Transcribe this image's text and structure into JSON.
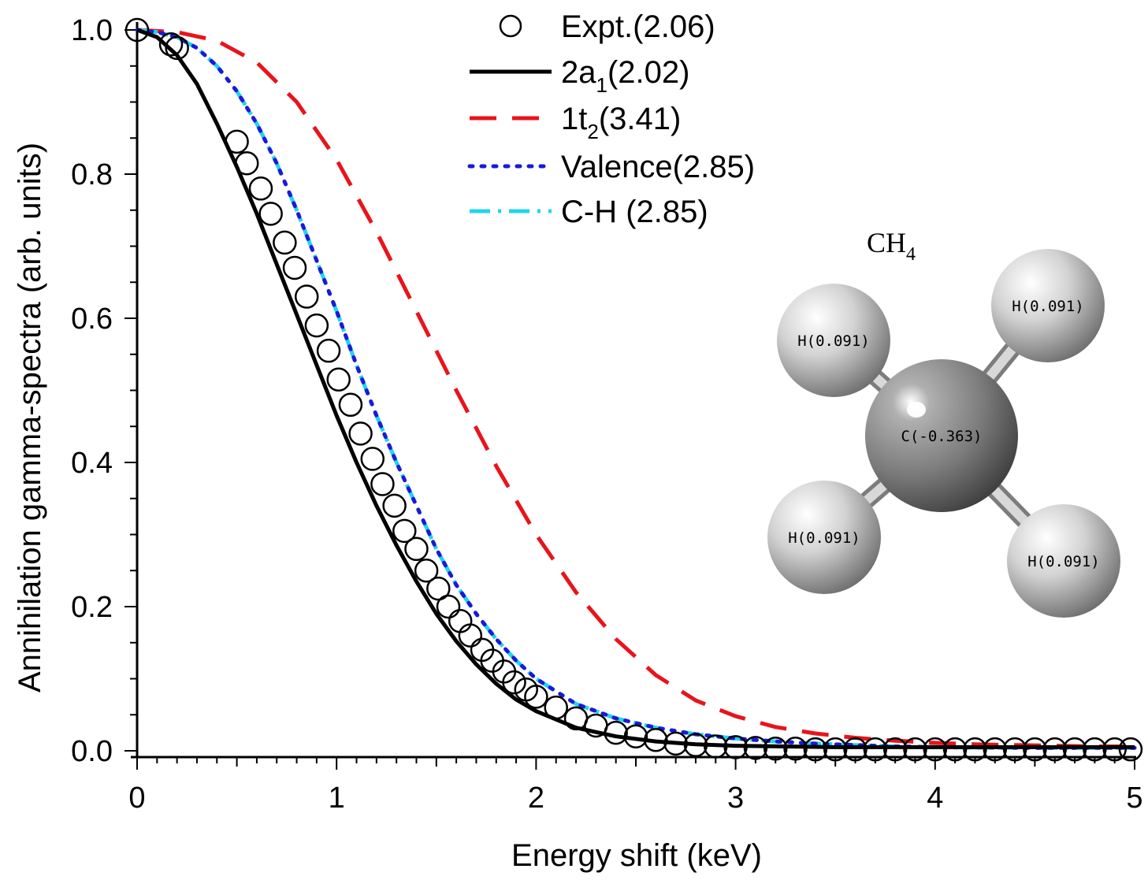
{
  "chart_data": {
    "type": "line",
    "xlabel": "Energy shift (keV)",
    "ylabel": "Annihilation gamma-spectra (arb. units)",
    "xlim": [
      0,
      5
    ],
    "ylim": [
      0,
      1.0
    ],
    "x_ticks": [
      "0",
      "1",
      "2",
      "3",
      "4",
      "5"
    ],
    "y_ticks": [
      "0.0",
      "0.2",
      "0.4",
      "0.6",
      "0.8",
      "1.0"
    ],
    "grid": false,
    "legend_position": "top-center",
    "legend": [
      {
        "main": "Expt.(2.06)",
        "sub": "",
        "tail": ""
      },
      {
        "main": "2a",
        "sub": "1",
        "tail": "(2.02)"
      },
      {
        "main": "1t",
        "sub": "2",
        "tail": "(3.41)"
      },
      {
        "main": "Valence(2.85)",
        "sub": "",
        "tail": ""
      },
      {
        "main": "C-H (2.85)",
        "sub": "",
        "tail": ""
      }
    ],
    "series": [
      {
        "name": "Expt.(2.06)",
        "style": "circles",
        "color": "#000000",
        "x": [
          0.0,
          0.17,
          0.2,
          0.5,
          0.55,
          0.62,
          0.67,
          0.74,
          0.79,
          0.85,
          0.9,
          0.96,
          1.01,
          1.07,
          1.12,
          1.18,
          1.23,
          1.29,
          1.34,
          1.4,
          1.45,
          1.51,
          1.56,
          1.62,
          1.67,
          1.73,
          1.78,
          1.84,
          1.89,
          1.95,
          2.0,
          2.1,
          2.2,
          2.3,
          2.4,
          2.5,
          2.6,
          2.7,
          2.8,
          2.9,
          3.0,
          3.1,
          3.2,
          3.3,
          3.4,
          3.5,
          3.6,
          3.7,
          3.8,
          3.9,
          4.0,
          4.1,
          4.2,
          4.3,
          4.4,
          4.5,
          4.6,
          4.7,
          4.8,
          4.9,
          4.98
        ],
        "y": [
          1.0,
          0.98,
          0.975,
          0.845,
          0.815,
          0.78,
          0.745,
          0.705,
          0.67,
          0.63,
          0.59,
          0.555,
          0.515,
          0.48,
          0.44,
          0.405,
          0.37,
          0.34,
          0.305,
          0.28,
          0.25,
          0.225,
          0.2,
          0.18,
          0.16,
          0.14,
          0.125,
          0.11,
          0.095,
          0.085,
          0.075,
          0.06,
          0.045,
          0.035,
          0.025,
          0.02,
          0.015,
          0.01,
          0.008,
          0.006,
          0.005,
          0.004,
          0.003,
          0.003,
          0.002,
          0.002,
          0.002,
          0.002,
          0.002,
          0.002,
          0.002,
          0.002,
          0.002,
          0.002,
          0.002,
          0.002,
          0.002,
          0.002,
          0.002,
          0.002,
          0.002
        ]
      },
      {
        "name": "2a1(2.02)",
        "style": "solid",
        "color": "#000000",
        "x": [
          0.0,
          0.1,
          0.2,
          0.3,
          0.4,
          0.5,
          0.6,
          0.7,
          0.8,
          0.9,
          1.0,
          1.1,
          1.2,
          1.3,
          1.4,
          1.5,
          1.6,
          1.7,
          1.8,
          1.9,
          2.0,
          2.2,
          2.4,
          2.6,
          2.8,
          3.0,
          3.5,
          4.0,
          4.5,
          5.0
        ],
        "y": [
          1.0,
          0.99,
          0.965,
          0.925,
          0.87,
          0.81,
          0.745,
          0.675,
          0.605,
          0.535,
          0.465,
          0.4,
          0.34,
          0.285,
          0.235,
          0.19,
          0.152,
          0.12,
          0.093,
          0.071,
          0.055,
          0.032,
          0.02,
          0.013,
          0.009,
          0.007,
          0.005,
          0.005,
          0.005,
          0.005
        ]
      },
      {
        "name": "1t2(3.41)",
        "style": "dashed",
        "color": "#e8141c",
        "x": [
          0.0,
          0.2,
          0.4,
          0.6,
          0.8,
          1.0,
          1.2,
          1.4,
          1.6,
          1.8,
          2.0,
          2.2,
          2.4,
          2.6,
          2.8,
          3.0,
          3.2,
          3.4,
          3.6,
          3.8,
          4.0,
          4.2,
          4.4,
          4.6,
          4.8,
          5.0
        ],
        "y": [
          1.0,
          0.997,
          0.985,
          0.955,
          0.9,
          0.82,
          0.72,
          0.61,
          0.5,
          0.395,
          0.3,
          0.22,
          0.155,
          0.105,
          0.07,
          0.048,
          0.033,
          0.024,
          0.018,
          0.014,
          0.011,
          0.009,
          0.008,
          0.007,
          0.006,
          0.006
        ]
      },
      {
        "name": "Valence(2.85)",
        "style": "dotted",
        "color": "#1a1ad6",
        "x": [
          0.0,
          0.1,
          0.2,
          0.3,
          0.4,
          0.5,
          0.6,
          0.7,
          0.8,
          0.9,
          1.0,
          1.1,
          1.2,
          1.3,
          1.4,
          1.5,
          1.6,
          1.7,
          1.8,
          1.9,
          2.0,
          2.2,
          2.4,
          2.6,
          2.8,
          3.0,
          3.2,
          3.4,
          3.6,
          3.8,
          4.0,
          4.5,
          5.0
        ],
        "y": [
          1.0,
          0.997,
          0.99,
          0.975,
          0.95,
          0.915,
          0.87,
          0.815,
          0.75,
          0.68,
          0.61,
          0.535,
          0.465,
          0.4,
          0.34,
          0.28,
          0.23,
          0.19,
          0.155,
          0.125,
          0.1,
          0.065,
          0.045,
          0.032,
          0.023,
          0.017,
          0.013,
          0.01,
          0.008,
          0.006,
          0.005,
          0.004,
          0.004
        ]
      },
      {
        "name": "C-H (2.85)",
        "style": "dashdot",
        "color": "#22d4ee",
        "x": [
          0.0,
          0.1,
          0.2,
          0.3,
          0.4,
          0.5,
          0.6,
          0.7,
          0.8,
          0.9,
          1.0,
          1.1,
          1.2,
          1.3,
          1.4,
          1.5,
          1.6,
          1.7,
          1.8,
          1.9,
          2.0,
          2.2,
          2.4,
          2.6,
          2.8,
          3.0,
          3.2,
          3.4,
          3.6,
          3.8,
          4.0,
          4.5,
          5.0
        ],
        "y": [
          1.0,
          0.997,
          0.99,
          0.975,
          0.95,
          0.915,
          0.87,
          0.815,
          0.75,
          0.68,
          0.61,
          0.535,
          0.465,
          0.4,
          0.34,
          0.28,
          0.23,
          0.19,
          0.155,
          0.125,
          0.1,
          0.065,
          0.045,
          0.032,
          0.023,
          0.017,
          0.013,
          0.01,
          0.008,
          0.006,
          0.005,
          0.004,
          0.004
        ]
      }
    ],
    "inset": {
      "title_main": "CH",
      "title_sub": "4",
      "atoms": [
        {
          "label": "H(0.091)",
          "element": "H"
        },
        {
          "label": "H(0.091)",
          "element": "H"
        },
        {
          "label": "C(-0.363)",
          "element": "C"
        },
        {
          "label": "H(0.091)",
          "element": "H"
        },
        {
          "label": "H(0.091)",
          "element": "H"
        }
      ]
    }
  }
}
